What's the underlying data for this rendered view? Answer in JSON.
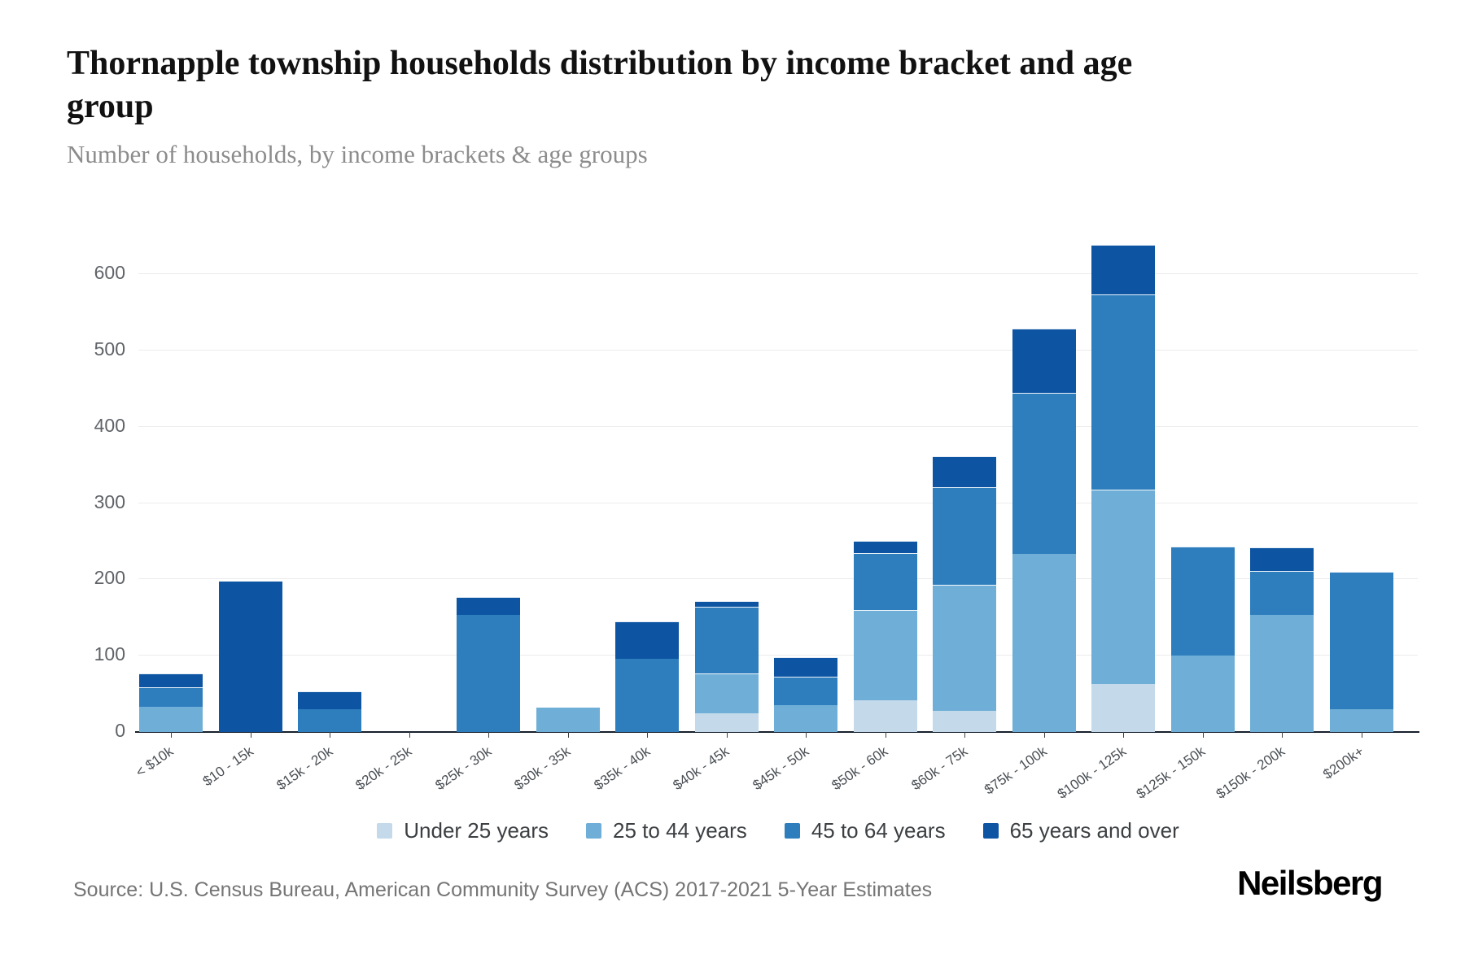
{
  "header": {
    "title": "Thornapple township households distribution by income bracket and age group",
    "subtitle": "Number of households, by income brackets & age groups"
  },
  "footer": {
    "source": "Source: U.S. Census Bureau, American Community Survey (ACS) 2017-2021 5-Year Estimates",
    "brand": "Neilsberg"
  },
  "chart_data": {
    "type": "bar",
    "stacked": true,
    "title": "Thornapple township households distribution by income bracket and age group",
    "xlabel": "",
    "ylabel": "Number of households",
    "grid": true,
    "legend_position": "bottom",
    "ylim": [
      0,
      650
    ],
    "y_ticks": [
      0,
      100,
      200,
      300,
      400,
      500,
      600
    ],
    "categories": [
      "< $10k",
      "$10 - 15k",
      "$15k - 20k",
      "$20k - 25k",
      "$25k - 30k",
      "$30k - 35k",
      "$35k - 40k",
      "$40k - 45k",
      "$45k - 50k",
      "$50k - 60k",
      "$60k - 75k",
      "$75k - 100k",
      "$100k - 125k",
      "$125k - 150k",
      "$150k - 200k",
      "$200k+"
    ],
    "series": [
      {
        "name": "Under 25 years",
        "color": "#c4d9ea",
        "values": [
          0,
          0,
          0,
          0,
          0,
          0,
          0,
          24,
          0,
          42,
          28,
          0,
          63,
          0,
          0,
          0
        ]
      },
      {
        "name": "25 to 44 years",
        "color": "#6fafd7",
        "values": [
          33,
          0,
          0,
          0,
          0,
          32,
          0,
          53,
          35,
          118,
          165,
          233,
          255,
          100,
          153,
          30
        ]
      },
      {
        "name": "45 to 64 years",
        "color": "#2e7ebd",
        "values": [
          26,
          0,
          30,
          0,
          153,
          0,
          96,
          87,
          38,
          75,
          128,
          211,
          255,
          143,
          58,
          180
        ]
      },
      {
        "name": "65 years and over",
        "color": "#0d55a3",
        "values": [
          18,
          197,
          23,
          0,
          24,
          0,
          49,
          8,
          25,
          16,
          40,
          85,
          65,
          0,
          31,
          0
        ]
      }
    ],
    "totals": [
      77,
      197,
      53,
      0,
      177,
      32,
      145,
      172,
      98,
      251,
      361,
      529,
      638,
      243,
      242,
      210
    ]
  },
  "colors": {
    "grid": "#ececec",
    "axis": "#16202c",
    "tick_label": "#5f6368"
  }
}
